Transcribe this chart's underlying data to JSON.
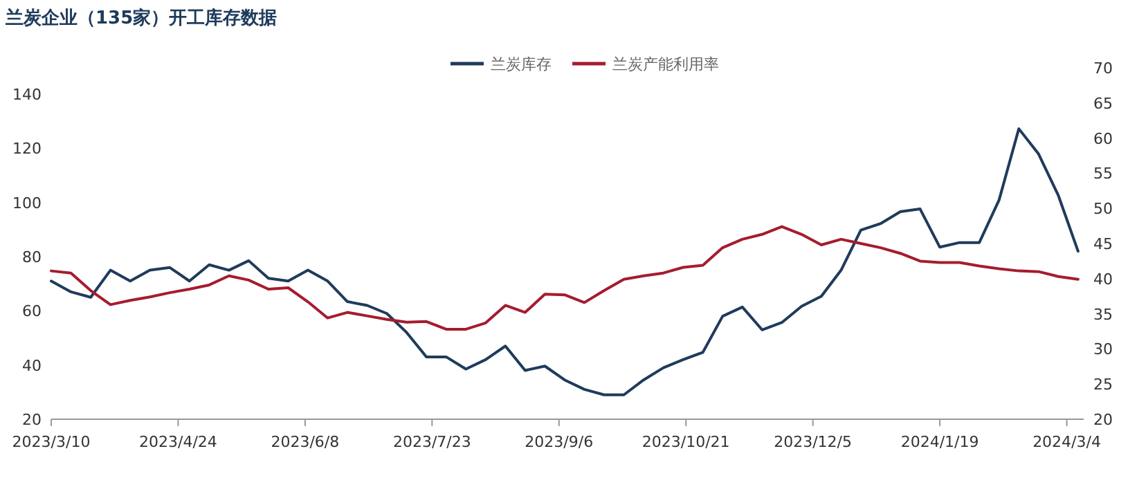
{
  "chart_data": {
    "type": "line",
    "title": "兰炭企业（135家）开工库存数据",
    "legend": "top",
    "x": [
      "2023-03-10",
      "2023-03-17",
      "2023-03-24",
      "2023-03-31",
      "2023-04-07",
      "2023-04-14",
      "2023-04-21",
      "2023-04-28",
      "2023-05-05",
      "2023-05-12",
      "2023-05-19",
      "2023-05-26",
      "2023-06-02",
      "2023-06-09",
      "2023-06-16",
      "2023-06-23",
      "2023-06-30",
      "2023-07-07",
      "2023-07-14",
      "2023-07-21",
      "2023-07-28",
      "2023-08-04",
      "2023-08-11",
      "2023-08-18",
      "2023-08-25",
      "2023-09-01",
      "2023-09-08",
      "2023-09-15",
      "2023-09-22",
      "2023-09-29",
      "2023-10-06",
      "2023-10-13",
      "2023-10-20",
      "2023-10-27",
      "2023-11-03",
      "2023-11-10",
      "2023-11-17",
      "2023-11-24",
      "2023-12-01",
      "2023-12-08",
      "2023-12-15",
      "2023-12-22",
      "2023-12-29",
      "2024-01-05",
      "2024-01-12",
      "2024-01-19",
      "2024-01-26",
      "2024-02-02",
      "2024-02-09",
      "2024-02-16",
      "2024-02-23",
      "2024-03-01",
      "2024-03-08"
    ],
    "series": [
      {
        "name": "兰炭库存",
        "color": "#1f3b5c",
        "values": [
          71,
          67,
          65,
          75,
          71,
          75,
          76,
          71,
          77,
          75,
          78.5,
          72,
          71,
          75,
          71,
          63.4,
          62,
          59,
          52,
          43,
          43,
          38.5,
          42,
          47,
          38,
          39.6,
          34.5,
          31,
          29,
          29,
          34.5,
          39,
          42,
          44.7,
          58,
          61.4,
          53,
          55.7,
          61.7,
          65.4,
          75,
          89.8,
          92.2,
          96.6,
          97.6,
          83.5,
          85.2,
          85.2,
          100.9,
          127.2,
          117.9,
          102.6,
          82
        ]
      },
      {
        "name": "兰炭产能利用率",
        "color": "#a51c2e",
        "axis": "y2",
        "values": [
          41.1,
          40.8,
          38.3,
          36.3,
          36.9,
          37.4,
          38.0,
          38.5,
          39.1,
          40.4,
          39.8,
          38.5,
          38.7,
          36.7,
          34.4,
          35.2,
          34.7,
          34.2,
          33.8,
          33.9,
          32.8,
          32.8,
          33.7,
          36.2,
          35.2,
          37.8,
          37.7,
          36.6,
          38.3,
          39.9,
          40.4,
          40.8,
          41.6,
          41.9,
          44.4,
          45.6,
          46.3,
          47.4,
          46.3,
          44.8,
          45.6,
          45.0,
          44.4,
          43.6,
          42.5,
          42.3,
          42.3,
          41.8,
          41.4,
          41.1,
          41.0,
          40.3,
          39.9
        ]
      }
    ],
    "xlim": [
      "2023-03-10",
      "2024-03-10"
    ],
    "xticks": [
      {
        "value": "2023-03-10",
        "label": "2023/3/10"
      },
      {
        "value": "2023-04-24",
        "label": "2023/4/24"
      },
      {
        "value": "2023-06-08",
        "label": "2023/6/8"
      },
      {
        "value": "2023-07-23",
        "label": "2023/7/23"
      },
      {
        "value": "2023-09-06",
        "label": "2023/9/6"
      },
      {
        "value": "2023-10-21",
        "label": "2023/10/21"
      },
      {
        "value": "2023-12-05",
        "label": "2023/12/5"
      },
      {
        "value": "2024-01-19",
        "label": "2024/1/19"
      },
      {
        "value": "2024-03-04",
        "label": "2024/3/4"
      }
    ],
    "ylim": [
      20,
      140
    ],
    "yticks": [
      20,
      40,
      60,
      80,
      100,
      120,
      140
    ],
    "y2lim": [
      20,
      70
    ],
    "y2ticks": [
      20,
      25,
      30,
      35,
      40,
      45,
      50,
      55,
      60,
      65,
      70
    ]
  }
}
